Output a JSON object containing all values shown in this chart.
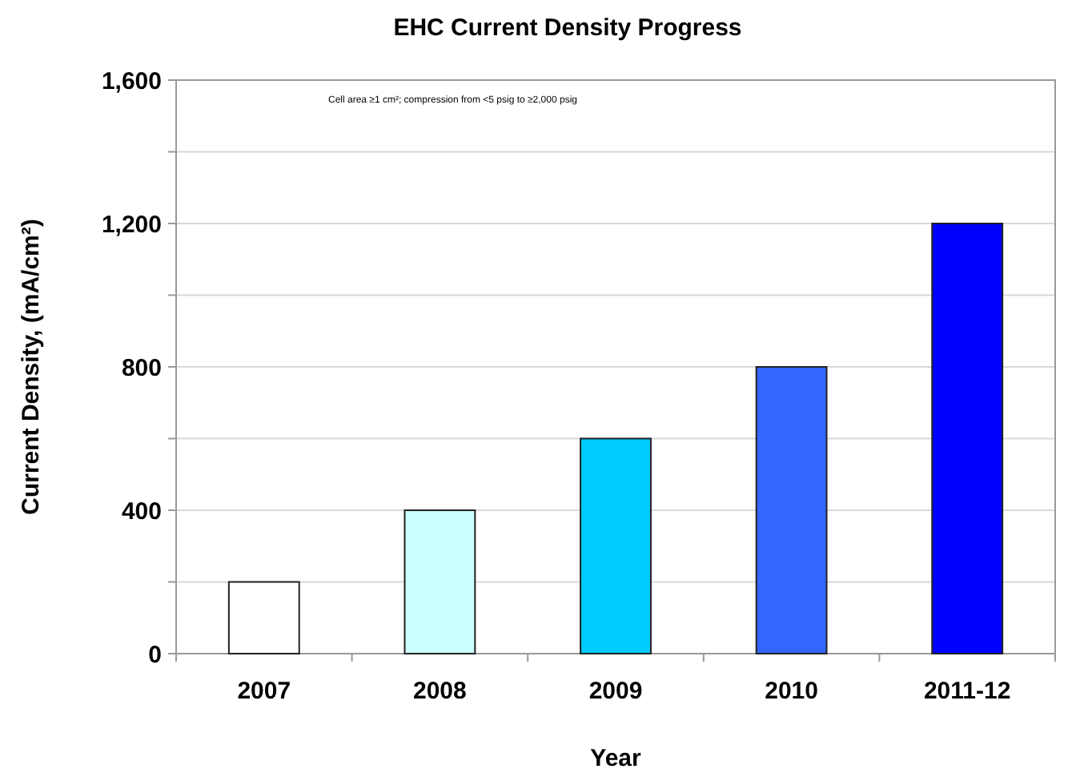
{
  "chart_data": {
    "type": "bar",
    "title": "EHC Current Density Progress",
    "xlabel": "Year",
    "ylabel": "Current Density, (mA/cm²)",
    "categories": [
      "2007",
      "2008",
      "2009",
      "2010",
      "2011-12"
    ],
    "values": [
      200,
      400,
      600,
      800,
      1200
    ],
    "colors": [
      "#ffffff",
      "#ccffff",
      "#00ccff",
      "#3366ff",
      "#0000ff"
    ],
    "ylim": [
      0,
      1600
    ],
    "yticks": [
      0,
      {
        "value": 200,
        "label": null
      },
      400,
      {
        "value": 600,
        "label": null
      },
      800,
      {
        "value": 1000,
        "label": null
      },
      {
        "value": 1200,
        "label": "1,200"
      },
      {
        "value": 1400,
        "label": null
      },
      {
        "value": 1600,
        "label": "1,600"
      }
    ],
    "grid": "y",
    "annotations": [
      "Cell area ≥1 cm²; compression from <5 psig to ≥2,000 psig"
    ]
  }
}
